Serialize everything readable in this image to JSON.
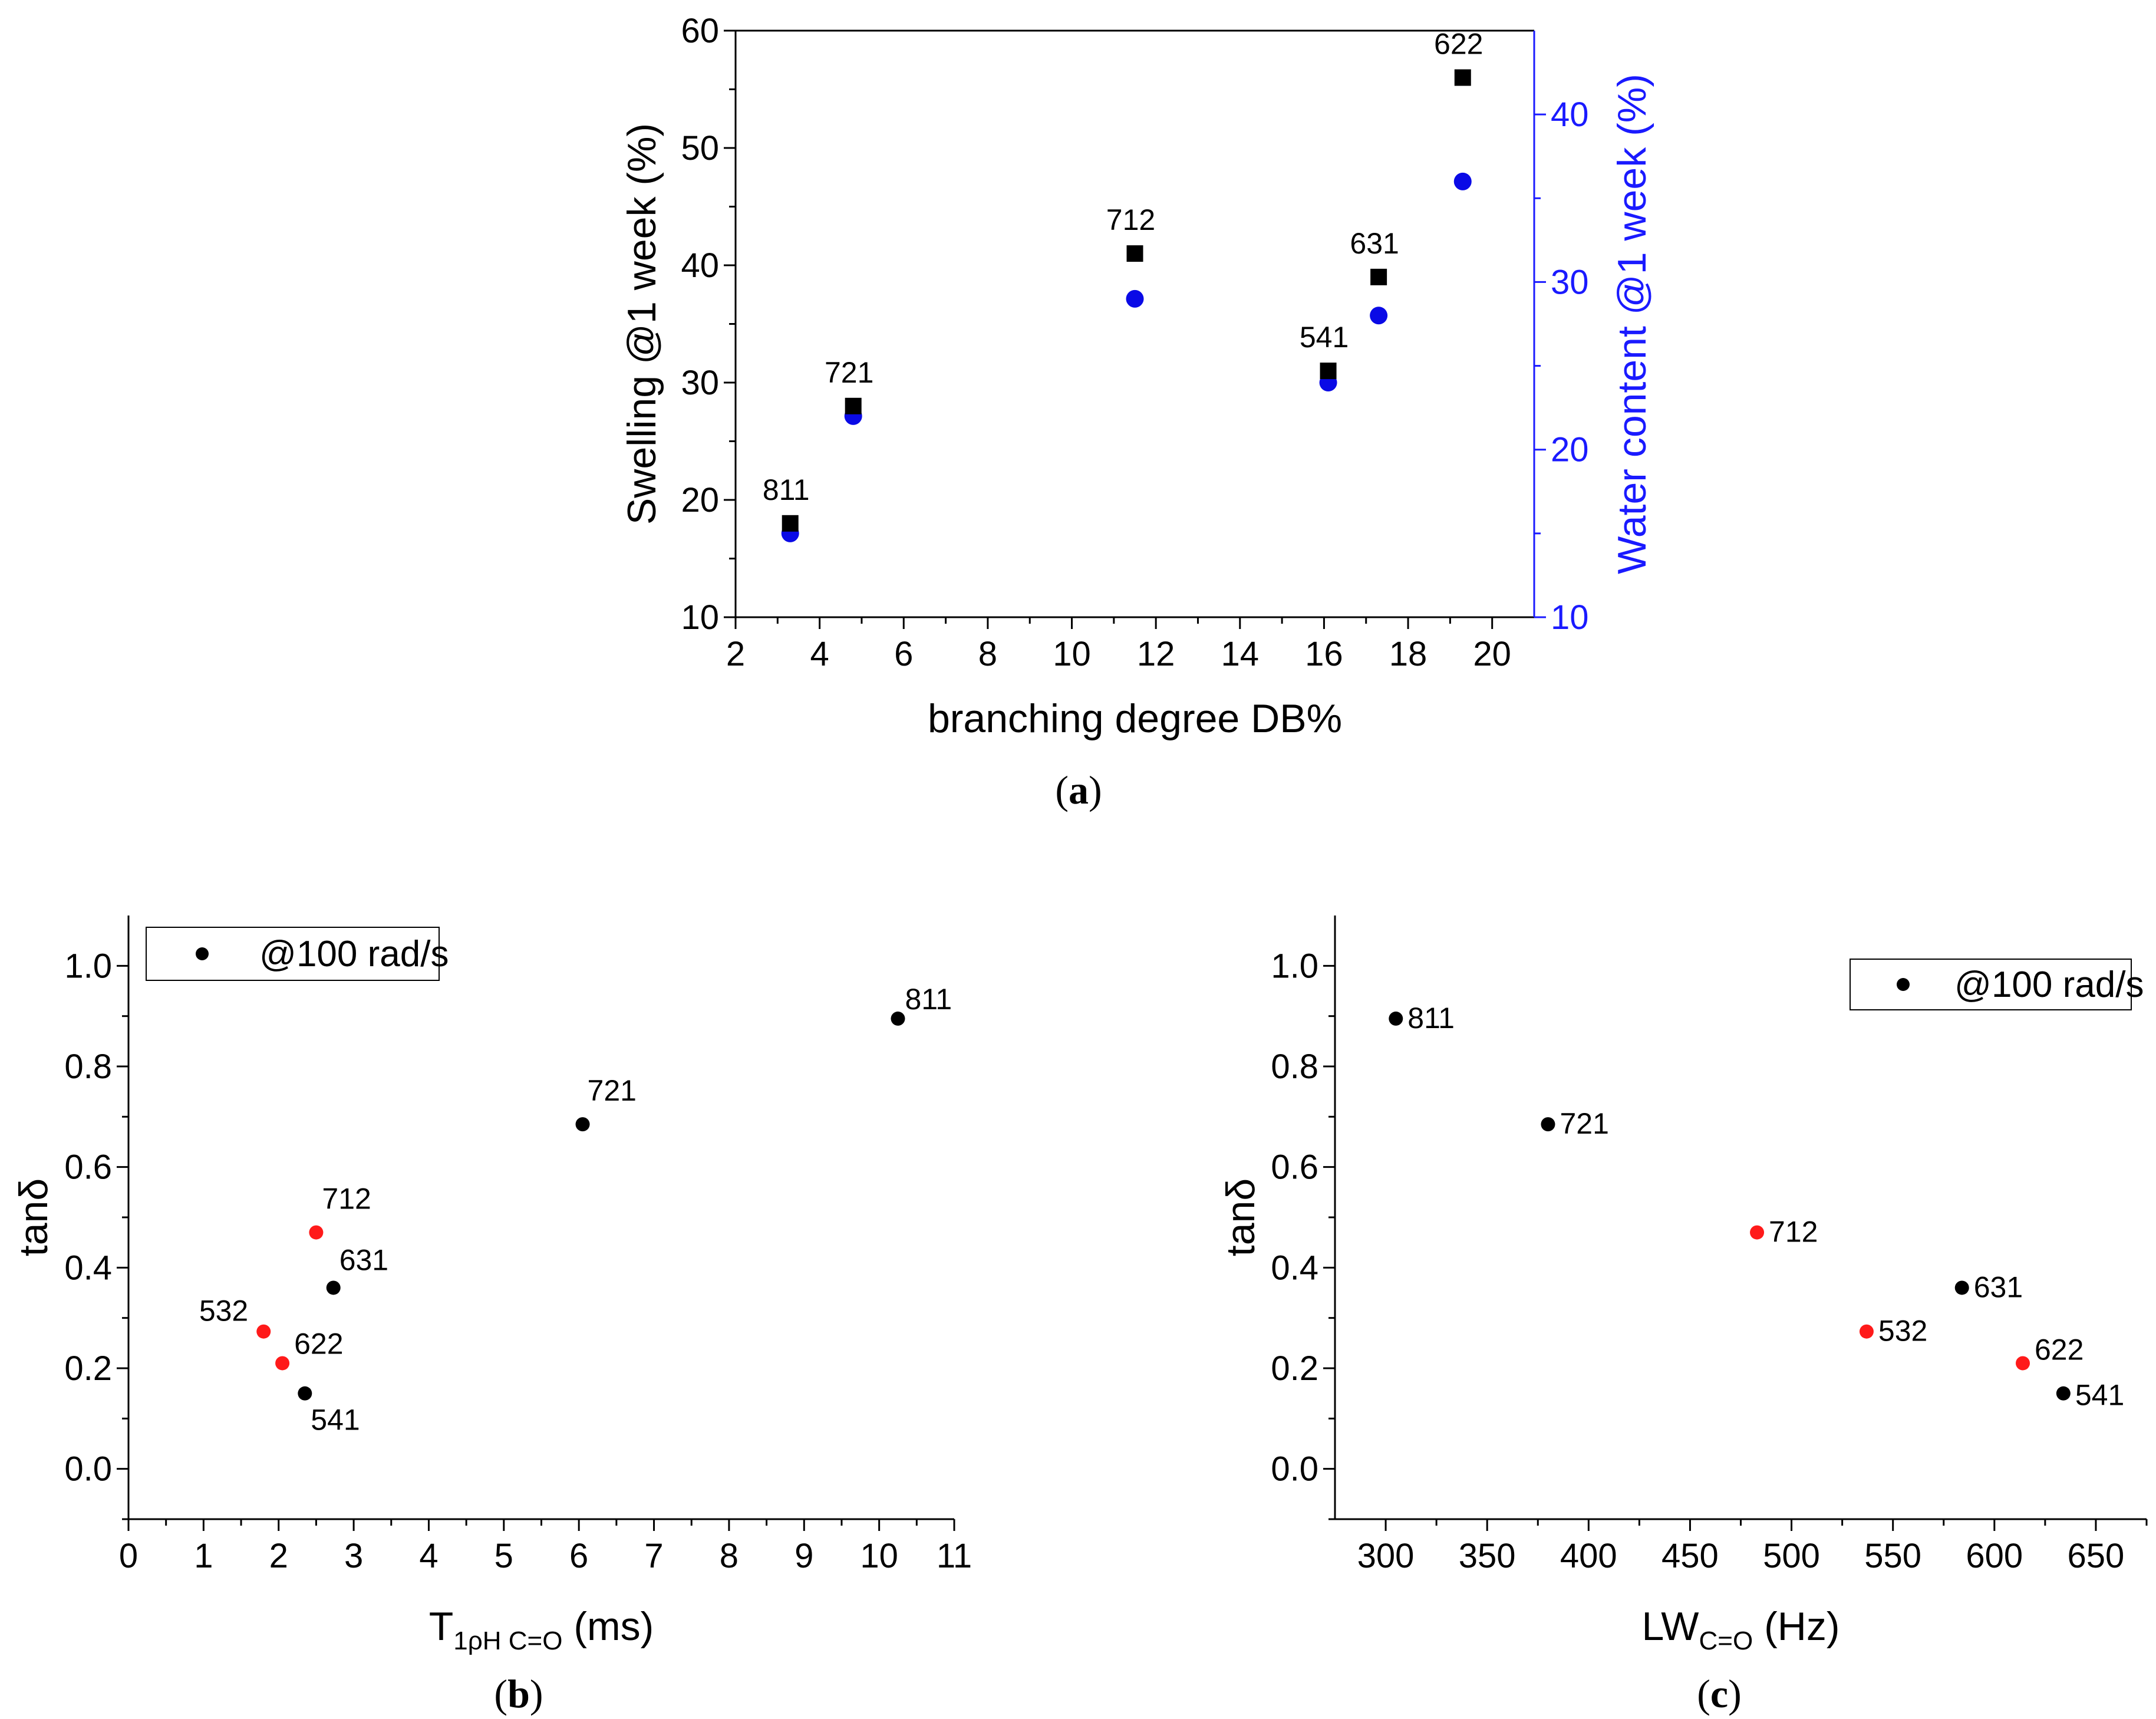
{
  "chart_data": [
    {
      "id": "a",
      "type": "scatter",
      "panel_label": "a",
      "xlabel": "branching degree DB%",
      "ylabel": "Swelling @1 week (%)",
      "y2label": "Water content @1 week (%)",
      "xlim": [
        2,
        21
      ],
      "ylim": [
        10,
        60
      ],
      "y2lim": [
        10,
        45
      ],
      "xticks": [
        2,
        4,
        6,
        8,
        10,
        12,
        14,
        16,
        18,
        20
      ],
      "yticks": [
        10,
        20,
        30,
        40,
        50,
        60
      ],
      "y2ticks": [
        10,
        20,
        30,
        40
      ],
      "colors": {
        "swelling": "#000000",
        "water": "#0a0ae6",
        "axis2": "#1a1aff"
      },
      "series": [
        {
          "key": "swelling",
          "marker": "square",
          "axis": "left",
          "x": [
            3.3,
            4.8,
            11.5,
            16.1,
            17.3,
            19.3
          ],
          "y": [
            18,
            28,
            41,
            31,
            39,
            56
          ],
          "labels": [
            "811",
            "721",
            "712",
            "541",
            "631",
            "622"
          ]
        },
        {
          "key": "water",
          "marker": "circle",
          "axis": "right",
          "x": [
            3.3,
            4.8,
            11.5,
            16.1,
            17.3,
            19.3
          ],
          "y": [
            15,
            22,
            29,
            24,
            28,
            36
          ]
        }
      ]
    },
    {
      "id": "b",
      "type": "scatter",
      "panel_label": "b",
      "xlabel_main": "T",
      "xlabel_sub": "1ρH C=O",
      "xlabel_tail": " (ms)",
      "ylabel": "tanδ",
      "xlim": [
        0,
        11
      ],
      "ylim": [
        -0.1,
        1.1
      ],
      "xticks": [
        0,
        1,
        2,
        3,
        4,
        5,
        6,
        7,
        8,
        9,
        10,
        11
      ],
      "yticks": [
        0.0,
        0.2,
        0.4,
        0.6,
        0.8,
        1.0
      ],
      "ytick_labels": [
        "0.0",
        "0.2",
        "0.4",
        "0.6",
        "0.8",
        "1.0"
      ],
      "legend": {
        "label": "@100 rad/s",
        "position": "top-left"
      },
      "colors": {
        "black": "#000000",
        "red": "#ff1a1a"
      },
      "points": [
        {
          "x": 10.25,
          "y": 0.895,
          "label": "811",
          "color": "black"
        },
        {
          "x": 6.05,
          "y": 0.685,
          "label": "721",
          "color": "black"
        },
        {
          "x": 2.5,
          "y": 0.47,
          "label": "712",
          "color": "red"
        },
        {
          "x": 2.73,
          "y": 0.36,
          "label": "631",
          "color": "black"
        },
        {
          "x": 1.8,
          "y": 0.273,
          "label": "532",
          "color": "red"
        },
        {
          "x": 2.05,
          "y": 0.21,
          "label": "622",
          "color": "red"
        },
        {
          "x": 2.35,
          "y": 0.15,
          "label": "541",
          "color": "black"
        }
      ]
    },
    {
      "id": "c",
      "type": "scatter",
      "panel_label": "c",
      "xlabel_main": "LW",
      "xlabel_sub": "C=O",
      "xlabel_tail": " (Hz)",
      "ylabel": "tanδ",
      "xlim": [
        275,
        675
      ],
      "ylim": [
        -0.1,
        1.1
      ],
      "xticks": [
        300,
        350,
        400,
        450,
        500,
        550,
        600,
        650
      ],
      "yticks": [
        0.0,
        0.2,
        0.4,
        0.6,
        0.8,
        1.0
      ],
      "ytick_labels": [
        "0.0",
        "0.2",
        "0.4",
        "0.6",
        "0.8",
        "1.0"
      ],
      "legend": {
        "label": "@100 rad/s",
        "position": "top-right"
      },
      "colors": {
        "black": "#000000",
        "red": "#ff1a1a"
      },
      "points": [
        {
          "x": 305,
          "y": 0.895,
          "label": "811",
          "color": "black"
        },
        {
          "x": 380,
          "y": 0.685,
          "label": "721",
          "color": "black"
        },
        {
          "x": 483,
          "y": 0.47,
          "label": "712",
          "color": "red"
        },
        {
          "x": 584,
          "y": 0.36,
          "label": "631",
          "color": "black"
        },
        {
          "x": 537,
          "y": 0.273,
          "label": "532",
          "color": "red"
        },
        {
          "x": 614,
          "y": 0.21,
          "label": "622",
          "color": "red"
        },
        {
          "x": 634,
          "y": 0.15,
          "label": "541",
          "color": "black"
        }
      ]
    }
  ]
}
